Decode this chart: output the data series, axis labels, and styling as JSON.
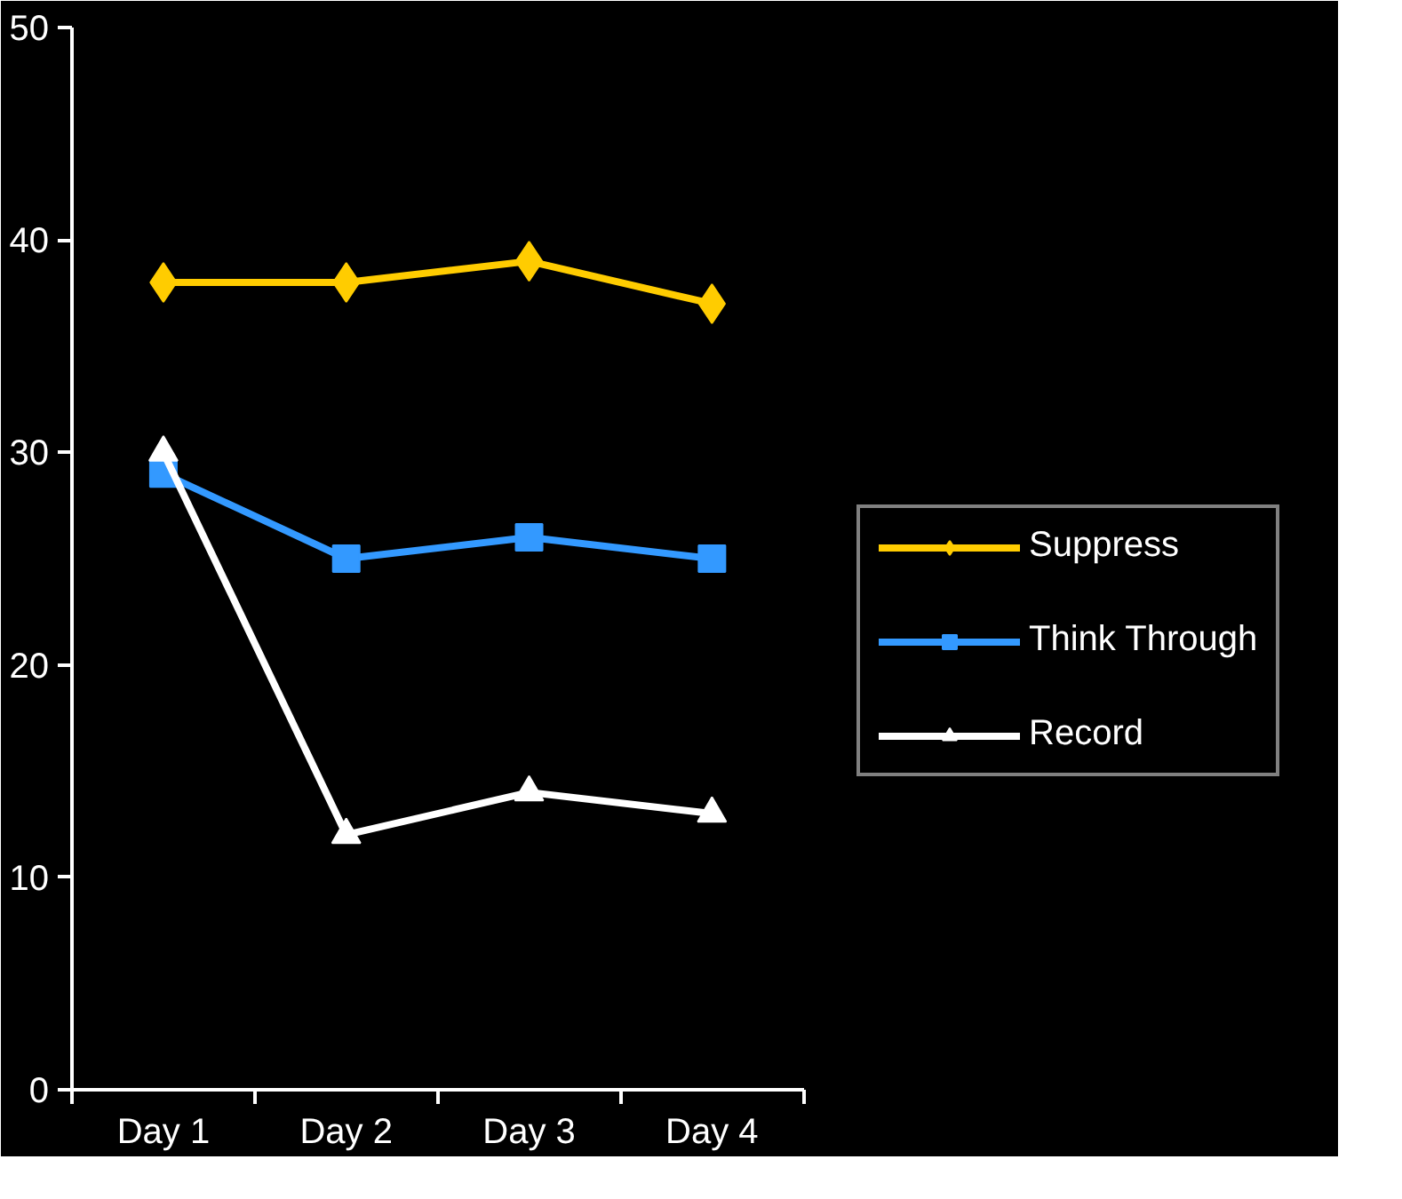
{
  "chart_data": {
    "type": "line",
    "categories": [
      "Day 1",
      "Day 2",
      "Day 3",
      "Day 4"
    ],
    "series": [
      {
        "name": "Suppress",
        "color": "#ffcc00",
        "marker": "diamond",
        "values": [
          38,
          38,
          39,
          37
        ]
      },
      {
        "name": "Think Through",
        "color": "#3399ff",
        "marker": "square",
        "values": [
          29,
          25,
          26,
          25
        ]
      },
      {
        "name": "Record",
        "color": "#ffffff",
        "marker": "triangle",
        "values": [
          30,
          12,
          14,
          13
        ]
      }
    ],
    "ylim": [
      0,
      50
    ],
    "yticks": [
      0,
      10,
      20,
      30,
      40,
      50
    ],
    "grid": false,
    "legend": "right",
    "line_style": "solid"
  }
}
